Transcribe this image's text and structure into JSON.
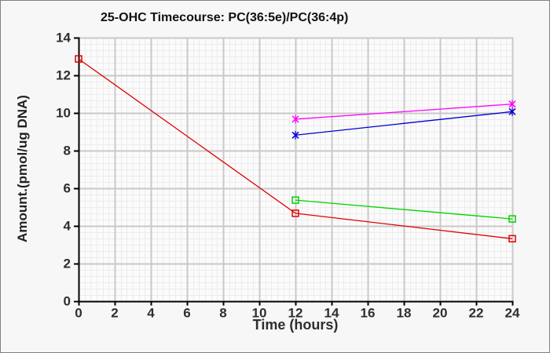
{
  "chart_data": {
    "type": "line",
    "title": "25-OHC Timecourse: PC(36:5e)/PC(36:4p)",
    "xlabel": "Time (hours)",
    "ylabel": "Amount.(pmol/ug DNA)",
    "xlim": [
      0,
      24
    ],
    "ylim": [
      0,
      14
    ],
    "x_ticks": [
      0,
      2,
      4,
      6,
      8,
      10,
      12,
      14,
      16,
      18,
      20,
      22,
      24
    ],
    "y_ticks": [
      0,
      2,
      4,
      6,
      8,
      10,
      12,
      14
    ],
    "grid": {
      "major": true,
      "minor": true,
      "minor_step": 0.33333
    },
    "legend": "none",
    "colors": {
      "plot_background": "#fbfbfb",
      "minor_grid": "#ececec",
      "major_grid": "#c9c9c9",
      "axis": "#000000",
      "tick_text": "#2e2e2e"
    },
    "series": [
      {
        "id": "red-squares",
        "color": "#e10000",
        "marker": "square",
        "x": [
          0,
          12,
          24
        ],
        "y": [
          12.85,
          4.65,
          3.3
        ]
      },
      {
        "id": "green-squares",
        "color": "#00d400",
        "marker": "square",
        "x": [
          12,
          24
        ],
        "y": [
          5.35,
          4.35
        ]
      },
      {
        "id": "blue-x",
        "color": "#0000d0",
        "marker": "x",
        "x": [
          12,
          24
        ],
        "y": [
          8.8,
          10.05
        ]
      },
      {
        "id": "magenta-x",
        "color": "#ff00ff",
        "marker": "x",
        "x": [
          12,
          24
        ],
        "y": [
          9.65,
          10.45
        ]
      }
    ]
  }
}
